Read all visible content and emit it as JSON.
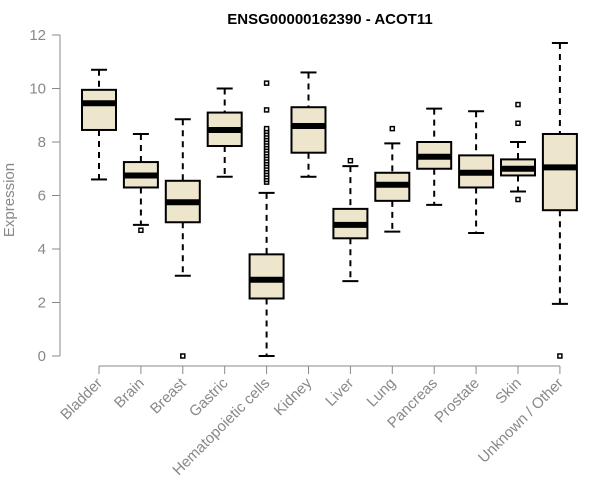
{
  "chart_data": {
    "type": "boxplot",
    "title": "ENSG00000162390 - ACOT11",
    "xlabel": "",
    "ylabel": "Expression",
    "ylim": [
      0,
      12
    ],
    "yticks": [
      0,
      2,
      4,
      6,
      8,
      10,
      12
    ],
    "box_color": "#ede6cd",
    "grid": false,
    "categories": [
      "Bladder",
      "Brain",
      "Breast",
      "Gastric",
      "Hematopoietic cells",
      "Kidney",
      "Liver",
      "Lung",
      "Pancreas",
      "Prostate",
      "Skin",
      "Unknown / Other"
    ],
    "boxes": [
      {
        "min": 6.6,
        "q1": 8.45,
        "median": 9.45,
        "q3": 9.95,
        "max": 10.7,
        "outliers": []
      },
      {
        "min": 4.9,
        "q1": 6.3,
        "median": 6.75,
        "q3": 7.25,
        "max": 8.3,
        "outliers": [
          4.7
        ]
      },
      {
        "min": 3.0,
        "q1": 5.0,
        "median": 5.75,
        "q3": 6.55,
        "max": 8.85,
        "outliers": [
          0.0
        ]
      },
      {
        "min": 6.7,
        "q1": 7.85,
        "median": 8.45,
        "q3": 9.1,
        "max": 10.0,
        "outliers": []
      },
      {
        "min": 0.0,
        "q1": 2.15,
        "median": 2.85,
        "q3": 3.8,
        "max": 6.1,
        "outliers": [
          6.5,
          6.6,
          6.7,
          6.8,
          6.9,
          7.0,
          7.1,
          7.2,
          7.3,
          7.4,
          7.5,
          7.6,
          7.7,
          7.8,
          7.9,
          8.0,
          8.1,
          8.2,
          8.3,
          8.4,
          8.5,
          9.2,
          10.2
        ]
      },
      {
        "min": 6.7,
        "q1": 7.6,
        "median": 8.6,
        "q3": 9.3,
        "max": 10.6,
        "outliers": []
      },
      {
        "min": 2.8,
        "q1": 4.4,
        "median": 4.9,
        "q3": 5.5,
        "max": 7.1,
        "outliers": [
          7.3
        ]
      },
      {
        "min": 4.65,
        "q1": 5.8,
        "median": 6.4,
        "q3": 6.85,
        "max": 7.95,
        "outliers": [
          8.5
        ]
      },
      {
        "min": 5.65,
        "q1": 7.0,
        "median": 7.45,
        "q3": 8.0,
        "max": 9.25,
        "outliers": []
      },
      {
        "min": 4.6,
        "q1": 6.3,
        "median": 6.85,
        "q3": 7.5,
        "max": 9.15,
        "outliers": []
      },
      {
        "min": 6.15,
        "q1": 6.75,
        "median": 7.0,
        "q3": 7.35,
        "max": 8.0,
        "outliers": [
          5.85,
          8.7,
          9.4
        ]
      },
      {
        "min": 1.95,
        "q1": 5.45,
        "median": 7.05,
        "q3": 8.3,
        "max": 11.7,
        "outliers": [
          0.0
        ]
      }
    ]
  }
}
